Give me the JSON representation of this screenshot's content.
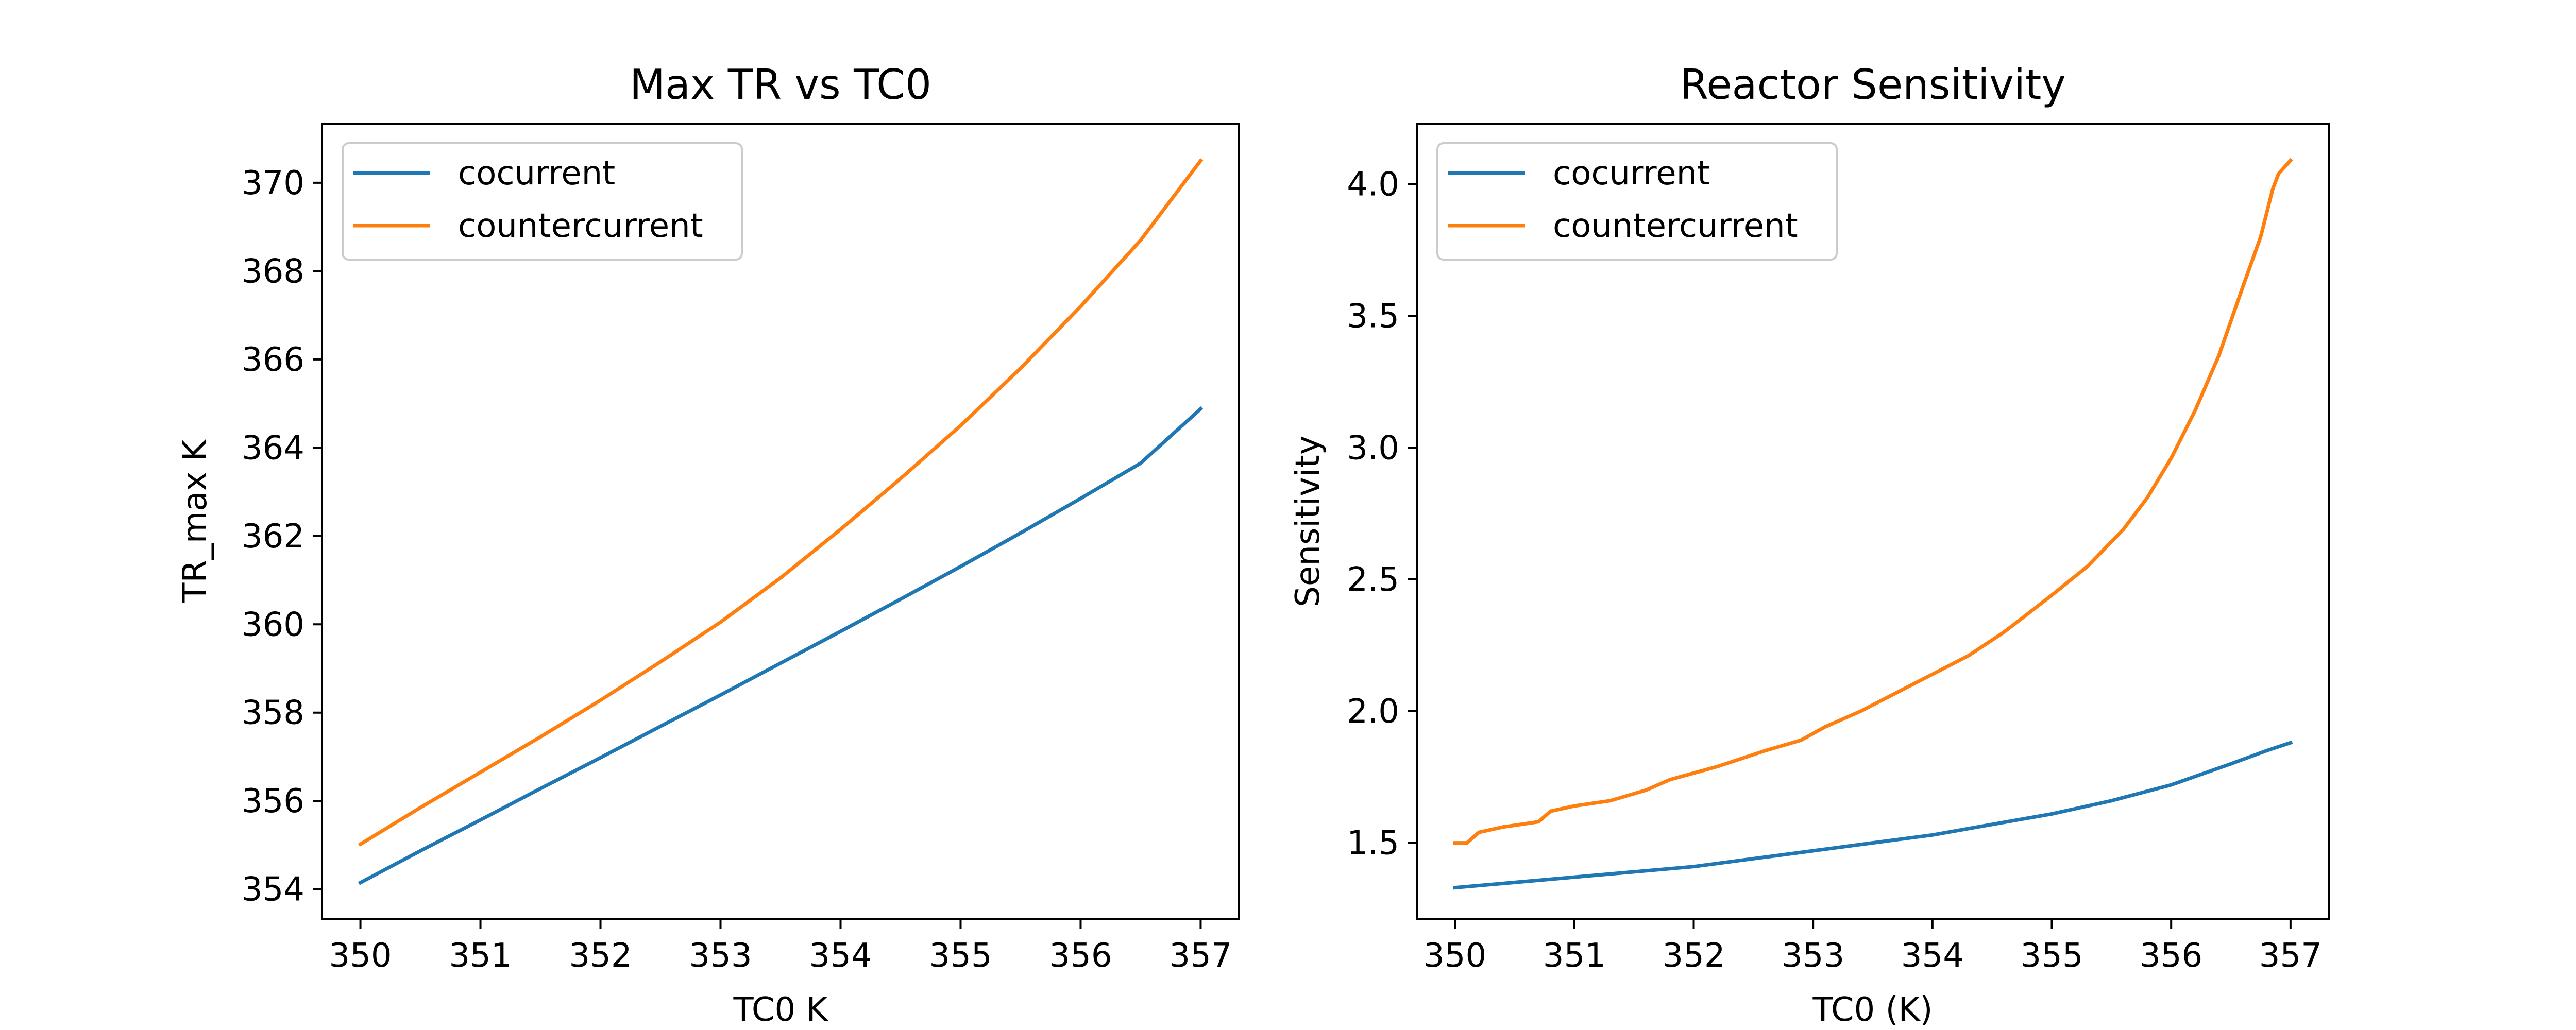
{
  "colors": {
    "cocurrent": "#1f77b4",
    "countercurrent": "#ff7f0e",
    "axes": "#000000",
    "legend_border": "#cccccc",
    "background": "#ffffff"
  },
  "chart_data": [
    {
      "type": "line",
      "title": "Max TR vs TC0",
      "xlabel": "TC0 K",
      "ylabel": "TR_max K",
      "xlim": [
        349.68,
        357.32
      ],
      "ylim": [
        353.32,
        371.34
      ],
      "xticks": [
        350,
        351,
        352,
        353,
        354,
        355,
        356,
        357
      ],
      "xtick_labels": [
        "350",
        "351",
        "352",
        "353",
        "354",
        "355",
        "356",
        "357"
      ],
      "yticks": [
        354,
        356,
        358,
        360,
        362,
        364,
        366,
        368,
        370
      ],
      "ytick_labels": [
        "354",
        "356",
        "358",
        "360",
        "362",
        "364",
        "366",
        "368",
        "370"
      ],
      "legend_position": "upper-left",
      "grid": false,
      "series": [
        {
          "name": "cocurrent",
          "x": [
            350,
            350.5,
            351,
            351.5,
            352,
            352.5,
            353,
            353.5,
            354,
            354.5,
            355,
            355.5,
            356,
            356.5,
            357
          ],
          "y": [
            354.15,
            354.87,
            355.57,
            356.28,
            356.98,
            357.69,
            358.4,
            359.12,
            359.84,
            360.57,
            361.31,
            362.07,
            362.85,
            363.65,
            364.88
          ]
        },
        {
          "name": "countercurrent",
          "x": [
            350,
            350.5,
            351,
            351.5,
            352,
            352.5,
            353,
            353.5,
            354,
            354.5,
            355,
            355.5,
            356,
            356.5,
            357
          ],
          "y": [
            355.02,
            355.85,
            356.65,
            357.45,
            358.28,
            359.15,
            360.05,
            361.05,
            362.15,
            363.3,
            364.5,
            365.8,
            367.2,
            368.7,
            370.5
          ]
        }
      ]
    },
    {
      "type": "line",
      "title": "Reactor Sensitivity",
      "xlabel": "TC0 (K)",
      "ylabel": "Sensitivity",
      "xlim": [
        349.68,
        357.32
      ],
      "ylim": [
        1.21,
        4.23
      ],
      "xticks": [
        350,
        351,
        352,
        353,
        354,
        355,
        356,
        357
      ],
      "xtick_labels": [
        "350",
        "351",
        "352",
        "353",
        "354",
        "355",
        "356",
        "357"
      ],
      "yticks": [
        1.5,
        2.0,
        2.5,
        3.0,
        3.5,
        4.0
      ],
      "ytick_labels": [
        "1.5",
        "2.0",
        "2.5",
        "3.0",
        "3.5",
        "4.0"
      ],
      "legend_position": "upper-left",
      "grid": false,
      "series": [
        {
          "name": "cocurrent",
          "x": [
            350,
            350.5,
            351,
            351.5,
            352,
            352.5,
            353,
            353.5,
            354,
            354.5,
            355,
            355.5,
            356,
            356.5,
            356.8,
            357
          ],
          "y": [
            1.33,
            1.35,
            1.37,
            1.39,
            1.41,
            1.44,
            1.47,
            1.5,
            1.53,
            1.57,
            1.61,
            1.66,
            1.72,
            1.8,
            1.85,
            1.88
          ]
        },
        {
          "name": "countercurrent",
          "x": [
            350,
            350.1,
            350.2,
            350.4,
            350.7,
            350.8,
            351.0,
            351.3,
            351.6,
            351.8,
            352.2,
            352.6,
            352.9,
            353.1,
            353.4,
            353.7,
            354.0,
            354.3,
            354.6,
            354.8,
            355.0,
            355.3,
            355.6,
            355.8,
            356.0,
            356.2,
            356.4,
            356.6,
            356.75,
            356.85,
            356.9,
            357.0
          ],
          "y": [
            1.5,
            1.5,
            1.54,
            1.56,
            1.58,
            1.62,
            1.64,
            1.66,
            1.7,
            1.74,
            1.79,
            1.85,
            1.89,
            1.94,
            2.0,
            2.07,
            2.14,
            2.21,
            2.3,
            2.37,
            2.44,
            2.55,
            2.69,
            2.81,
            2.96,
            3.14,
            3.35,
            3.61,
            3.8,
            3.98,
            4.04,
            4.09
          ]
        }
      ]
    }
  ]
}
